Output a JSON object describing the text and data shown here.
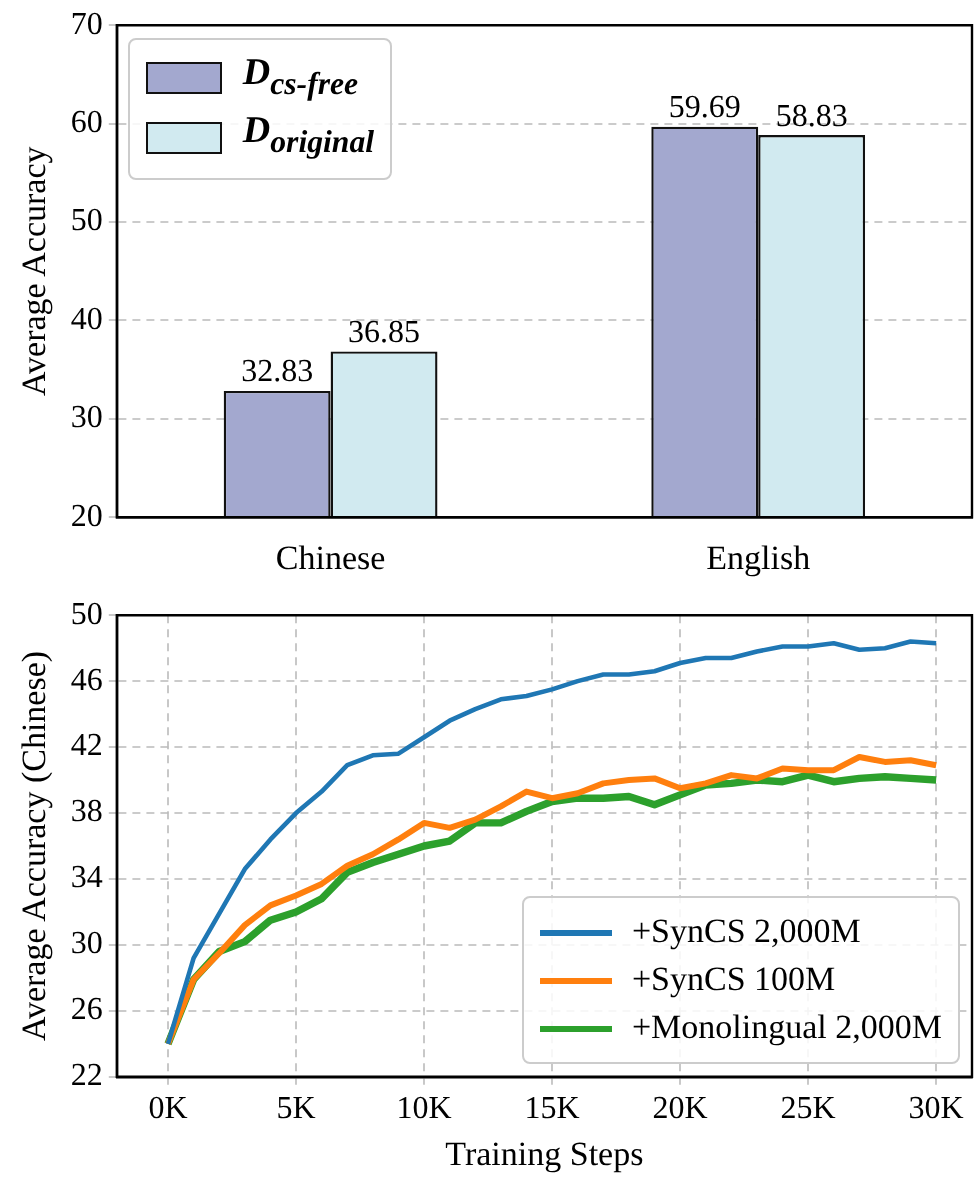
{
  "chart_data": [
    {
      "type": "bar",
      "categories": [
        "Chinese",
        "English"
      ],
      "ylabel": "Average Accuracy",
      "ylim": [
        20,
        70
      ],
      "yticks": [
        20,
        30,
        40,
        50,
        60,
        70
      ],
      "grid": "y",
      "legend": "top left",
      "data_labels": true,
      "series": [
        {
          "name": "D$_{cs-free}$",
          "color": "#a3a8cf",
          "values": [
            32.83,
            59.69
          ]
        },
        {
          "name": "D$_{original}$",
          "color": "#d1eaf0",
          "values": [
            36.85,
            58.83
          ]
        }
      ]
    },
    {
      "type": "line",
      "xlabel": "Training Steps",
      "ylabel": "Average Accuracy (Chinese)",
      "x": [
        0,
        1000,
        2000,
        3000,
        4000,
        5000,
        6000,
        7000,
        8000,
        9000,
        10000,
        11000,
        12000,
        13000,
        14000,
        15000,
        16000,
        17000,
        18000,
        19000,
        20000,
        21000,
        22000,
        23000,
        24000,
        25000,
        26000,
        27000,
        28000,
        29000,
        30000
      ],
      "xlim": [
        -2000,
        31400
      ],
      "xticks": [
        {
          "value": 0,
          "label": "0K"
        },
        {
          "value": 5000,
          "label": "5K"
        },
        {
          "value": 10000,
          "label": "10K"
        },
        {
          "value": 15000,
          "label": "15K"
        },
        {
          "value": 20000,
          "label": "20K"
        },
        {
          "value": 25000,
          "label": "25K"
        },
        {
          "value": 30000,
          "label": "30K"
        }
      ],
      "ylim": [
        22,
        50
      ],
      "yticks": [
        22,
        26,
        30,
        34,
        38,
        42,
        46,
        50
      ],
      "grid": true,
      "legend": "bottom right",
      "marker": "none",
      "line_style": "solid",
      "series": [
        {
          "name": "+SynCS 2,000M",
          "color": "#1f77b4",
          "values": [
            24,
            29.2,
            31.9,
            34.6,
            36.4,
            38.0,
            39.3,
            40.9,
            41.5,
            41.6,
            42.6,
            43.6,
            44.3,
            44.9,
            45.1,
            45.5,
            46.0,
            46.4,
            46.4,
            46.6,
            47.1,
            47.4,
            47.4,
            47.8,
            48.1,
            48.1,
            48.3,
            47.9,
            48.0,
            48.4,
            48.3
          ]
        },
        {
          "name": "+SynCS 100M",
          "color": "#ff7f0e",
          "values": [
            24,
            27.9,
            29.5,
            31.2,
            32.4,
            33.0,
            33.7,
            34.8,
            35.5,
            36.4,
            37.4,
            37.1,
            37.6,
            38.4,
            39.3,
            38.9,
            39.2,
            39.8,
            40.0,
            40.1,
            39.5,
            39.8,
            40.3,
            40.1,
            40.7,
            40.6,
            40.6,
            41.4,
            41.1,
            41.2,
            40.9
          ]
        },
        {
          "name": "+Monolingual 2,000M",
          "color": "#2ca02c",
          "values": [
            24,
            27.9,
            29.6,
            30.2,
            31.5,
            32.0,
            32.8,
            34.4,
            35.0,
            35.5,
            36.0,
            36.3,
            37.4,
            37.4,
            38.1,
            38.7,
            38.9,
            38.9,
            39.0,
            38.5,
            39.1,
            39.7,
            39.8,
            40.0,
            39.9,
            40.3,
            39.9,
            40.1,
            40.2,
            40.1,
            40.0
          ]
        }
      ]
    }
  ]
}
